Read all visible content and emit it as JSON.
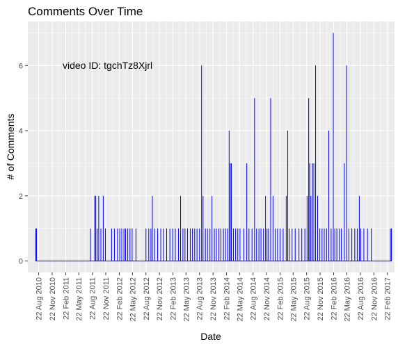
{
  "chart_data": {
    "type": "line",
    "title": "Comments Over Time",
    "xlabel": "Date",
    "ylabel": "# of Comments",
    "annotation": "video ID: tgchTz8Xjrl",
    "line_color": "#0000ff",
    "panel_color": "#ebebeb",
    "grid": true,
    "legend": "none",
    "xlim": [
      "2010-06-09",
      "2017-04-12"
    ],
    "ylim": [
      -0.35,
      7.35
    ],
    "y_ticks": [
      0,
      2,
      4,
      6
    ],
    "x_ticks": [
      "2010-08-22",
      "2010-11-22",
      "2011-02-22",
      "2011-05-22",
      "2011-08-22",
      "2011-11-22",
      "2012-02-22",
      "2012-05-22",
      "2012-08-22",
      "2012-11-22",
      "2013-02-22",
      "2013-05-22",
      "2013-08-22",
      "2013-11-22",
      "2014-02-22",
      "2014-05-22",
      "2014-08-22",
      "2014-11-22",
      "2015-02-22",
      "2015-05-22",
      "2015-08-22",
      "2015-11-22",
      "2016-02-22",
      "2016-05-22",
      "2016-08-22",
      "2016-11-22",
      "2017-02-22"
    ],
    "x_tick_labels": [
      "22 Aug 2010",
      "22 Nov 2010",
      "22 Feb 2011",
      "22 May 2011",
      "22 Aug 2011",
      "22 Nov 2011",
      "22 Feb 2012",
      "22 May 2012",
      "22 Aug 2012",
      "22 Nov 2012",
      "22 Feb 2013",
      "22 May 2013",
      "22 Aug 2013",
      "22 Nov 2013",
      "22 Feb 2014",
      "22 May 2014",
      "22 Aug 2014",
      "22 Nov 2014",
      "22 Feb 2015",
      "22 May 2015",
      "22 Aug 2015",
      "22 Nov 2015",
      "22 Feb 2016",
      "22 May 2016",
      "22 Aug 2016",
      "22 Nov 2016",
      "22 Feb 2017"
    ],
    "series": [
      {
        "points": [
          [
            "2010-08-01",
            1
          ],
          [
            "2010-08-07",
            1
          ],
          [
            "2011-08-10",
            1
          ],
          [
            "2011-09-08",
            2
          ],
          [
            "2011-09-15",
            2
          ],
          [
            "2011-09-25",
            1
          ],
          [
            "2011-10-05",
            2
          ],
          [
            "2011-10-20",
            1
          ],
          [
            "2011-11-05",
            2
          ],
          [
            "2011-11-20",
            1
          ],
          [
            "2012-01-01",
            1
          ],
          [
            "2012-01-20",
            1
          ],
          [
            "2012-02-10",
            1
          ],
          [
            "2012-02-25",
            1
          ],
          [
            "2012-03-10",
            1
          ],
          [
            "2012-03-25",
            1
          ],
          [
            "2012-04-05",
            1
          ],
          [
            "2012-04-20",
            1
          ],
          [
            "2012-05-05",
            1
          ],
          [
            "2012-05-20",
            1
          ],
          [
            "2012-06-15",
            1
          ],
          [
            "2012-08-22",
            1
          ],
          [
            "2012-09-10",
            1
          ],
          [
            "2012-09-25",
            1
          ],
          [
            "2012-10-05",
            2
          ],
          [
            "2012-10-20",
            1
          ],
          [
            "2012-11-10",
            1
          ],
          [
            "2012-12-01",
            1
          ],
          [
            "2012-12-20",
            1
          ],
          [
            "2013-01-10",
            1
          ],
          [
            "2013-02-01",
            1
          ],
          [
            "2013-02-20",
            1
          ],
          [
            "2013-03-10",
            1
          ],
          [
            "2013-04-01",
            1
          ],
          [
            "2013-04-15",
            2
          ],
          [
            "2013-05-01",
            1
          ],
          [
            "2013-05-15",
            1
          ],
          [
            "2013-06-01",
            1
          ],
          [
            "2013-06-20",
            1
          ],
          [
            "2013-07-05",
            1
          ],
          [
            "2013-07-20",
            1
          ],
          [
            "2013-08-05",
            1
          ],
          [
            "2013-08-22",
            1
          ],
          [
            "2013-09-05",
            6
          ],
          [
            "2013-09-15",
            2
          ],
          [
            "2013-10-01",
            1
          ],
          [
            "2013-10-15",
            1
          ],
          [
            "2013-11-01",
            1
          ],
          [
            "2013-11-15",
            2
          ],
          [
            "2013-12-01",
            1
          ],
          [
            "2013-12-15",
            1
          ],
          [
            "2014-01-01",
            1
          ],
          [
            "2014-01-15",
            1
          ],
          [
            "2014-02-01",
            1
          ],
          [
            "2014-02-15",
            1
          ],
          [
            "2014-03-01",
            1
          ],
          [
            "2014-03-12",
            4
          ],
          [
            "2014-03-20",
            3
          ],
          [
            "2014-03-27",
            3
          ],
          [
            "2014-04-10",
            1
          ],
          [
            "2014-04-25",
            1
          ],
          [
            "2014-05-10",
            1
          ],
          [
            "2014-05-25",
            1
          ],
          [
            "2014-06-20",
            1
          ],
          [
            "2014-07-10",
            3
          ],
          [
            "2014-07-25",
            1
          ],
          [
            "2014-08-15",
            1
          ],
          [
            "2014-09-01",
            5
          ],
          [
            "2014-09-15",
            1
          ],
          [
            "2014-10-01",
            1
          ],
          [
            "2014-10-15",
            1
          ],
          [
            "2014-11-01",
            1
          ],
          [
            "2014-11-15",
            2
          ],
          [
            "2014-11-25",
            1
          ],
          [
            "2014-12-05",
            1
          ],
          [
            "2014-12-20",
            5
          ],
          [
            "2015-01-05",
            2
          ],
          [
            "2015-01-20",
            1
          ],
          [
            "2015-02-05",
            1
          ],
          [
            "2015-02-22",
            1
          ],
          [
            "2015-03-15",
            1
          ],
          [
            "2015-04-05",
            2
          ],
          [
            "2015-04-15",
            4
          ],
          [
            "2015-04-25",
            1
          ],
          [
            "2015-05-15",
            1
          ],
          [
            "2015-06-05",
            1
          ],
          [
            "2015-07-01",
            1
          ],
          [
            "2015-07-20",
            1
          ],
          [
            "2015-08-10",
            1
          ],
          [
            "2015-08-25",
            2
          ],
          [
            "2015-09-05",
            5
          ],
          [
            "2015-09-12",
            3
          ],
          [
            "2015-09-20",
            2
          ],
          [
            "2015-10-01",
            3
          ],
          [
            "2015-10-10",
            3
          ],
          [
            "2015-10-22",
            6
          ],
          [
            "2015-11-05",
            2
          ],
          [
            "2015-11-20",
            1
          ],
          [
            "2015-12-05",
            1
          ],
          [
            "2015-12-20",
            1
          ],
          [
            "2016-01-05",
            1
          ],
          [
            "2016-01-20",
            4
          ],
          [
            "2016-02-05",
            1
          ],
          [
            "2016-02-20",
            7
          ],
          [
            "2016-03-01",
            1
          ],
          [
            "2016-03-15",
            1
          ],
          [
            "2016-04-01",
            1
          ],
          [
            "2016-04-15",
            1
          ],
          [
            "2016-05-05",
            3
          ],
          [
            "2016-05-20",
            6
          ],
          [
            "2016-06-05",
            1
          ],
          [
            "2016-06-25",
            1
          ],
          [
            "2016-07-15",
            1
          ],
          [
            "2016-08-01",
            1
          ],
          [
            "2016-08-15",
            2
          ],
          [
            "2016-08-25",
            1
          ],
          [
            "2016-09-15",
            1
          ],
          [
            "2016-10-10",
            1
          ],
          [
            "2016-11-05",
            1
          ],
          [
            "2017-03-15",
            1
          ],
          [
            "2017-03-22",
            1
          ]
        ]
      }
    ]
  }
}
